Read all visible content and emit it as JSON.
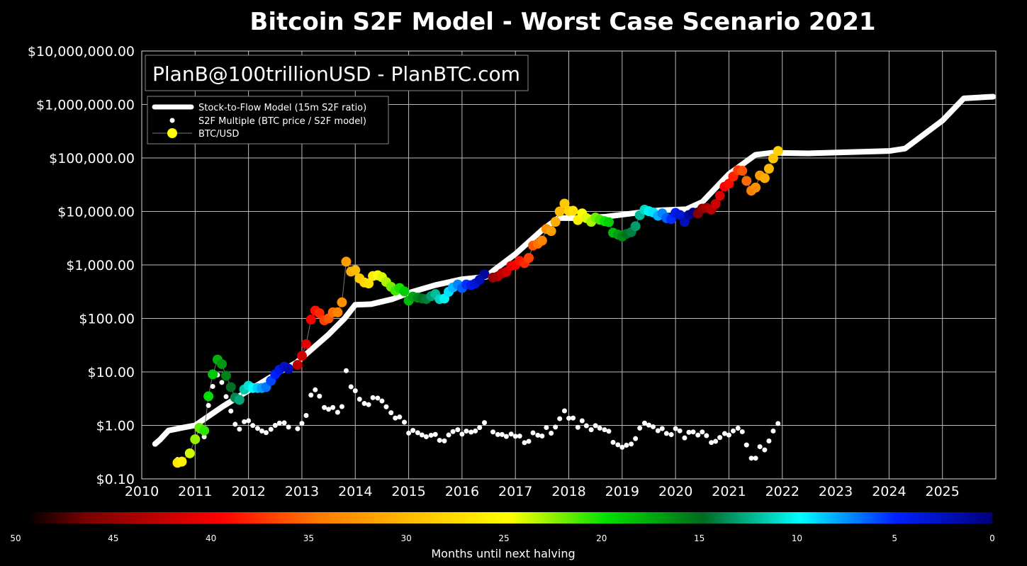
{
  "chart_data": {
    "type": "scatter",
    "title": "Bitcoin S2F Model - Worst Case Scenario 2021",
    "annotation": "PlanB@100trillionUSD - PlanBTC.com",
    "xlabel": "",
    "ylabel": "",
    "yscale": "log",
    "ylim": [
      0.1,
      10000000
    ],
    "xlim": [
      2010,
      2026
    ],
    "grid": true,
    "x_ticks": [
      "2010",
      "2011",
      "2012",
      "2013",
      "2014",
      "2015",
      "2016",
      "2017",
      "2018",
      "2019",
      "2020",
      "2021",
      "2022",
      "2023",
      "2024",
      "2025"
    ],
    "y_ticks": [
      {
        "value": 10000000,
        "label": "$10,000,000.00"
      },
      {
        "value": 1000000,
        "label": "$1,000,000.00"
      },
      {
        "value": 100000,
        "label": "$100,000.00"
      },
      {
        "value": 10000,
        "label": "$10,000.00"
      },
      {
        "value": 1000,
        "label": "$1,000.00"
      },
      {
        "value": 100,
        "label": "$100.00"
      },
      {
        "value": 10,
        "label": "$10.00"
      },
      {
        "value": 1,
        "label": "$1.00"
      },
      {
        "value": 0.1,
        "label": "$0.10"
      }
    ],
    "legend": {
      "placement": "top-left",
      "entries": [
        "Stock-to-Flow Model (15m S2F ratio)",
        "S2F Multiple (BTC price / S2F model)",
        "BTC/USD"
      ]
    },
    "halvings": [
      2012.91,
      2016.53,
      2020.36,
      2024.3
    ],
    "colorbar": {
      "label": "Months until next halving",
      "ticks": [
        "50",
        "45",
        "40",
        "35",
        "30",
        "25",
        "20",
        "15",
        "10",
        "5",
        "0"
      ],
      "range": [
        50,
        0
      ],
      "stops": [
        {
          "v": 50,
          "c": "#000000"
        },
        {
          "v": 47,
          "c": "#7a0000"
        },
        {
          "v": 43,
          "c": "#c40000"
        },
        {
          "v": 40,
          "c": "#ff0000"
        },
        {
          "v": 35,
          "c": "#ff7a00"
        },
        {
          "v": 30,
          "c": "#ffc000"
        },
        {
          "v": 25,
          "c": "#ffff00"
        },
        {
          "v": 20,
          "c": "#00e000"
        },
        {
          "v": 15,
          "c": "#006a20"
        },
        {
          "v": 10,
          "c": "#00ffff"
        },
        {
          "v": 5,
          "c": "#0020ff"
        },
        {
          "v": 0,
          "c": "#00007a"
        }
      ]
    },
    "series": [
      {
        "name": "Stock-to-Flow Model (15m S2F ratio)",
        "color": "#ffffff",
        "points": [
          [
            2010.25,
            0.45
          ],
          [
            2010.35,
            0.55
          ],
          [
            2010.5,
            0.8
          ],
          [
            2010.75,
            0.9
          ],
          [
            2011.0,
            1.0
          ],
          [
            2011.5,
            2.2
          ],
          [
            2012.0,
            4.5
          ],
          [
            2012.5,
            9
          ],
          [
            2012.9,
            15
          ],
          [
            2013.5,
            50
          ],
          [
            2013.8,
            100
          ],
          [
            2014.0,
            180
          ],
          [
            2014.3,
            185
          ],
          [
            2014.7,
            230
          ],
          [
            2015.0,
            300
          ],
          [
            2015.5,
            420
          ],
          [
            2016.0,
            540
          ],
          [
            2016.45,
            600
          ],
          [
            2016.6,
            800
          ],
          [
            2017.0,
            1600
          ],
          [
            2017.5,
            4500
          ],
          [
            2017.8,
            7500
          ],
          [
            2018.2,
            7500
          ],
          [
            2018.7,
            8000
          ],
          [
            2019.3,
            9500
          ],
          [
            2019.7,
            10500
          ],
          [
            2020.2,
            11000
          ],
          [
            2020.5,
            15000
          ],
          [
            2021.0,
            50000
          ],
          [
            2021.5,
            115000
          ],
          [
            2021.8,
            125000
          ],
          [
            2022.5,
            122000
          ],
          [
            2024.0,
            135000
          ],
          [
            2024.3,
            150000
          ],
          [
            2025.0,
            500000
          ],
          [
            2025.4,
            1300000
          ],
          [
            2025.95,
            1400000
          ]
        ]
      },
      {
        "name": "BTC/USD",
        "points": [
          [
            2010.67,
            0.2
          ],
          [
            2010.75,
            0.21
          ],
          [
            2010.9,
            0.3
          ],
          [
            2011.0,
            0.55
          ],
          [
            2011.08,
            0.9
          ],
          [
            2011.17,
            0.8
          ],
          [
            2011.25,
            3.5
          ],
          [
            2011.33,
            9
          ],
          [
            2011.42,
            17
          ],
          [
            2011.5,
            14
          ],
          [
            2011.58,
            8.5
          ],
          [
            2011.67,
            5.2
          ],
          [
            2011.75,
            3.3
          ],
          [
            2011.83,
            3.0
          ],
          [
            2011.92,
            4.7
          ],
          [
            2012.0,
            5.5
          ],
          [
            2012.08,
            5
          ],
          [
            2012.17,
            5
          ],
          [
            2012.25,
            5
          ],
          [
            2012.33,
            5.2
          ],
          [
            2012.42,
            6.8
          ],
          [
            2012.5,
            9
          ],
          [
            2012.58,
            11
          ],
          [
            2012.67,
            12.5
          ],
          [
            2012.75,
            11.5
          ],
          [
            2012.92,
            13.5
          ],
          [
            2013.0,
            20
          ],
          [
            2013.08,
            33
          ],
          [
            2013.17,
            95
          ],
          [
            2013.25,
            140
          ],
          [
            2013.33,
            125
          ],
          [
            2013.42,
            92
          ],
          [
            2013.5,
            100
          ],
          [
            2013.58,
            130
          ],
          [
            2013.67,
            130
          ],
          [
            2013.75,
            200
          ],
          [
            2013.83,
            1150
          ],
          [
            2013.92,
            750
          ],
          [
            2014.0,
            800
          ],
          [
            2014.08,
            560
          ],
          [
            2014.17,
            470
          ],
          [
            2014.25,
            450
          ],
          [
            2014.33,
            620
          ],
          [
            2014.42,
            640
          ],
          [
            2014.5,
            590
          ],
          [
            2014.58,
            480
          ],
          [
            2014.67,
            390
          ],
          [
            2014.75,
            330
          ],
          [
            2014.83,
            370
          ],
          [
            2014.92,
            320
          ],
          [
            2015.0,
            215
          ],
          [
            2015.08,
            255
          ],
          [
            2015.17,
            245
          ],
          [
            2015.25,
            235
          ],
          [
            2015.33,
            230
          ],
          [
            2015.42,
            260
          ],
          [
            2015.5,
            285
          ],
          [
            2015.58,
            230
          ],
          [
            2015.67,
            235
          ],
          [
            2015.75,
            315
          ],
          [
            2015.83,
            380
          ],
          [
            2015.92,
            430
          ],
          [
            2016.0,
            370
          ],
          [
            2016.08,
            430
          ],
          [
            2016.17,
            420
          ],
          [
            2016.25,
            450
          ],
          [
            2016.33,
            530
          ],
          [
            2016.42,
            670
          ],
          [
            2016.58,
            580
          ],
          [
            2016.67,
            610
          ],
          [
            2016.75,
            700
          ],
          [
            2016.83,
            740
          ],
          [
            2016.92,
            960
          ],
          [
            2017.0,
            1000
          ],
          [
            2017.08,
            1190
          ],
          [
            2017.17,
            1080
          ],
          [
            2017.25,
            1350
          ],
          [
            2017.33,
            2300
          ],
          [
            2017.42,
            2500
          ],
          [
            2017.5,
            2850
          ],
          [
            2017.58,
            4700
          ],
          [
            2017.67,
            4300
          ],
          [
            2017.75,
            6400
          ],
          [
            2017.83,
            10000
          ],
          [
            2017.92,
            14000
          ],
          [
            2018.0,
            10200
          ],
          [
            2018.08,
            10300
          ],
          [
            2018.17,
            6900
          ],
          [
            2018.25,
            9200
          ],
          [
            2018.33,
            7500
          ],
          [
            2018.42,
            6400
          ],
          [
            2018.5,
            7700
          ],
          [
            2018.58,
            7000
          ],
          [
            2018.67,
            6600
          ],
          [
            2018.75,
            6300
          ],
          [
            2018.83,
            4000
          ],
          [
            2018.92,
            3700
          ],
          [
            2019.0,
            3400
          ],
          [
            2019.08,
            3800
          ],
          [
            2019.17,
            4100
          ],
          [
            2019.25,
            5300
          ],
          [
            2019.33,
            8500
          ],
          [
            2019.42,
            10800
          ],
          [
            2019.5,
            10100
          ],
          [
            2019.58,
            9600
          ],
          [
            2019.67,
            8300
          ],
          [
            2019.75,
            9200
          ],
          [
            2019.83,
            7500
          ],
          [
            2019.92,
            7200
          ],
          [
            2020.0,
            9400
          ],
          [
            2020.08,
            8600
          ],
          [
            2020.17,
            6400
          ],
          [
            2020.25,
            8600
          ],
          [
            2020.33,
            9500
          ],
          [
            2020.42,
            9100
          ],
          [
            2020.5,
            11300
          ],
          [
            2020.58,
            11700
          ],
          [
            2020.67,
            10800
          ],
          [
            2020.75,
            13800
          ],
          [
            2020.83,
            19700
          ],
          [
            2020.92,
            29000
          ],
          [
            2021.0,
            33000
          ],
          [
            2021.08,
            45000
          ],
          [
            2021.17,
            58800
          ],
          [
            2021.25,
            57700
          ],
          [
            2021.33,
            37300
          ],
          [
            2021.42,
            24500
          ],
          [
            2021.5,
            28000
          ],
          [
            2021.58,
            47000
          ],
          [
            2021.67,
            42000
          ],
          [
            2021.75,
            63000
          ],
          [
            2021.83,
            98000
          ],
          [
            2021.92,
            135000
          ]
        ]
      },
      {
        "name": "S2F Multiple (BTC price / S2F model)",
        "color": "#ffffff",
        "derived_from": "BTC/USD divided by Stock-to-Flow Model"
      }
    ]
  }
}
